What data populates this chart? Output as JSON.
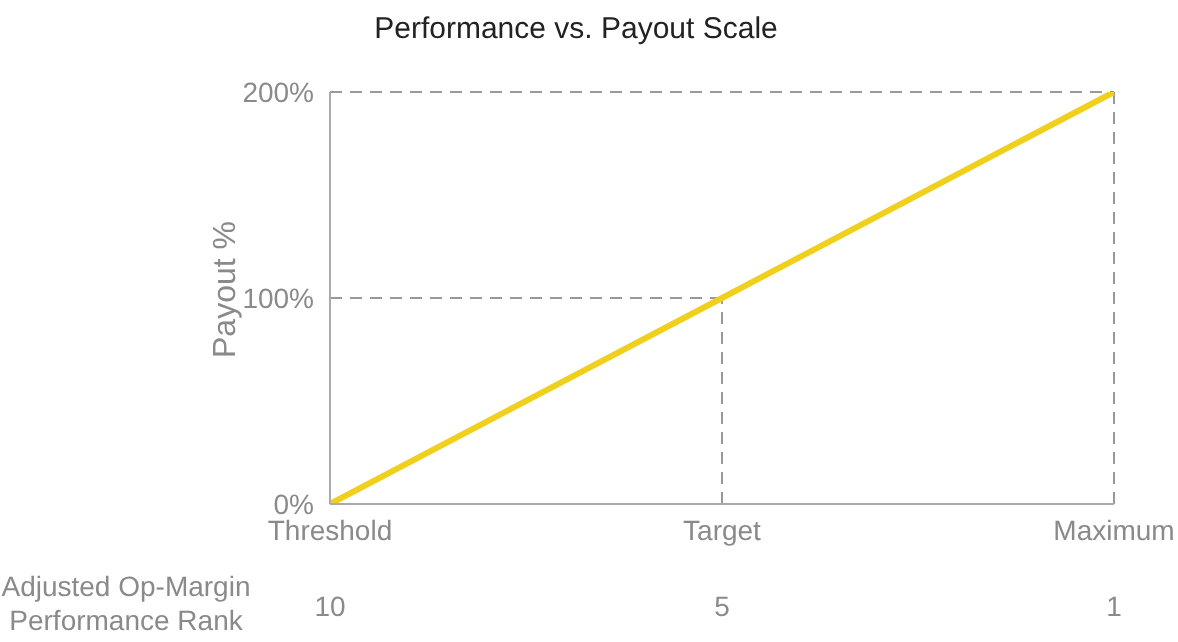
{
  "chart_data": {
    "type": "line",
    "title": "Performance vs. Payout Scale",
    "ylabel": "Payout %",
    "categories": [
      "Threshold",
      "Target",
      "Maximum"
    ],
    "series": [
      {
        "color": "#f0d01c",
        "values": [
          0,
          100,
          200
        ]
      }
    ],
    "ylim": [
      0,
      200
    ],
    "yticks": [
      {
        "value": 0,
        "label": "0%"
      },
      {
        "value": 100,
        "label": "100%"
      },
      {
        "value": 200,
        "label": "200%"
      }
    ],
    "ref_lines": [
      {
        "axis": "y",
        "value": 100,
        "color": "#999999",
        "line_style": "dashed"
      },
      {
        "axis": "y",
        "value": 200,
        "color": "#999999",
        "line_style": "dashed"
      },
      {
        "axis": "x",
        "value": "Target",
        "color": "#999999",
        "line_style": "dashed"
      },
      {
        "axis": "x",
        "value": "Maximum",
        "color": "#999999",
        "line_style": "dashed"
      }
    ],
    "annotations": [
      "Adjusted Op-Margin Performance Rank",
      "10",
      "5",
      "1"
    ],
    "marker": "none",
    "line_style": "solid",
    "legend": false,
    "grid": false
  }
}
